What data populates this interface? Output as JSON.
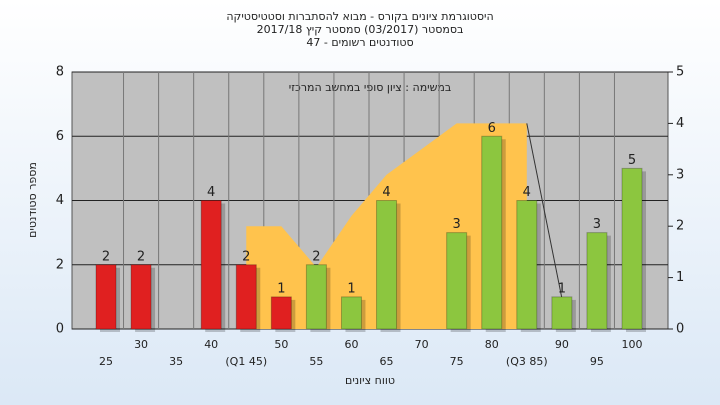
{
  "chart_data": {
    "type": "bar",
    "title": "היסטוגרמת ציונים בקורס - מבוא להסתברות וסטטיסטיקה",
    "subtitle": "בסמסטר  (03/2017)  סמסטר קיץ  2017/18",
    "subtitle2": "סטודנטים רשומים - 47",
    "annotation": "במשימה : ציון סופי במחשב המרכזי",
    "ylabel": "מספר סטודנטים",
    "xlabel": "טווח ציונים",
    "categories": [
      "25",
      "30",
      "35",
      "40",
      "(Q1 45)",
      "50",
      "55",
      "60",
      "65",
      "70",
      "75",
      "80",
      "(Q3 85)",
      "90",
      "95",
      "100"
    ],
    "series": [
      {
        "values": [
          2,
          2,
          0,
          4,
          2,
          1,
          2,
          1,
          4,
          0,
          3,
          6,
          4,
          1,
          3,
          5
        ],
        "colors": [
          "#e02020",
          "#e02020",
          "#e02020",
          "#e02020",
          "#e02020",
          "#e02020",
          "#8cc63f",
          "#8cc63f",
          "#8cc63f",
          "#8cc63f",
          "#8cc63f",
          "#8cc63f",
          "#8cc63f",
          "#8cc63f",
          "#8cc63f",
          "#8cc63f"
        ]
      },
      {
        "type": "area",
        "axis": "y2",
        "color": "#ffc34d",
        "values": [
          null,
          null,
          null,
          null,
          2,
          2,
          1.2,
          2.2,
          3,
          3.5,
          4,
          4,
          4,
          null,
          null,
          null
        ]
      },
      {
        "type": "line",
        "axis": "y2",
        "color": "#333333",
        "values": [
          null,
          null,
          null,
          null,
          null,
          null,
          null,
          null,
          null,
          null,
          null,
          null,
          4,
          0.6,
          null,
          null
        ]
      }
    ],
    "ylim": [
      0,
      8
    ],
    "yticks": [
      0,
      2,
      4,
      6,
      8
    ],
    "y2lim": [
      0,
      5
    ],
    "y2ticks": [
      0,
      1,
      2,
      3,
      4,
      5
    ],
    "grid": true
  }
}
